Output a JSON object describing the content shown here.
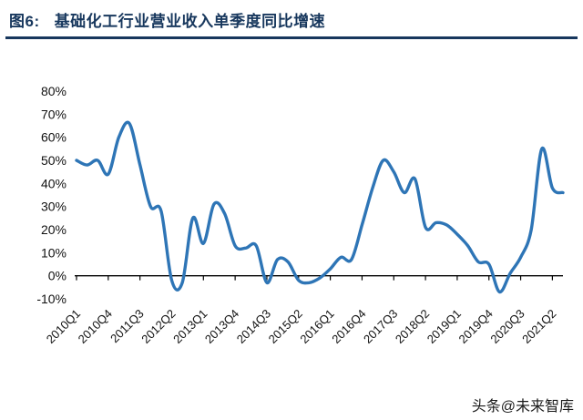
{
  "header": {
    "figure_label": "图6:",
    "title": "基础化工行业营业收入单季度同比增速",
    "accent_color": "#17375D"
  },
  "watermark": {
    "text": "头条@未来智库"
  },
  "chart_data": {
    "type": "line",
    "title": "基础化工行业营业收入单季度同比增速",
    "xlabel": "",
    "ylabel": "",
    "ylim": [
      -10,
      80
    ],
    "y_ticks": [
      80,
      70,
      60,
      50,
      40,
      30,
      20,
      10,
      0,
      -10
    ],
    "y_tick_suffix": "%",
    "grid": false,
    "legend_position": "none",
    "line_color": "#2E75B6",
    "axis_color": "#000000",
    "categories": [
      "2010Q1",
      "2010Q2",
      "2010Q3",
      "2010Q4",
      "2011Q1",
      "2011Q2",
      "2011Q3",
      "2011Q4",
      "2012Q1",
      "2012Q2",
      "2012Q3",
      "2012Q4",
      "2013Q1",
      "2013Q2",
      "2013Q3",
      "2013Q4",
      "2014Q1",
      "2014Q2",
      "2014Q3",
      "2014Q4",
      "2015Q1",
      "2015Q2",
      "2015Q3",
      "2015Q4",
      "2016Q1",
      "2016Q2",
      "2016Q3",
      "2016Q4",
      "2017Q1",
      "2017Q2",
      "2017Q3",
      "2017Q4",
      "2018Q1",
      "2018Q2",
      "2018Q3",
      "2018Q4",
      "2019Q1",
      "2019Q2",
      "2019Q3",
      "2019Q4",
      "2020Q1",
      "2020Q2",
      "2020Q3",
      "2020Q4",
      "2021Q1",
      "2021Q2",
      "2021Q3"
    ],
    "x_tick_labels": [
      "2010Q1",
      "2010Q4",
      "2011Q3",
      "2012Q2",
      "2013Q1",
      "2013Q4",
      "2014Q3",
      "2015Q2",
      "2016Q1",
      "2016Q4",
      "2017Q3",
      "2018Q2",
      "2019Q1",
      "2019Q4",
      "2020Q3",
      "2021Q2"
    ],
    "series": [
      {
        "name": "营业收入单季度同比增速",
        "values": [
          50,
          48,
          50,
          44,
          60,
          66,
          48,
          30,
          28,
          -2,
          -3,
          25,
          14,
          31,
          27,
          13,
          12,
          13,
          -3,
          7,
          6,
          -2,
          -3,
          -1,
          3,
          8,
          7,
          22,
          38,
          50,
          45,
          36,
          42,
          21,
          23,
          22,
          18,
          13,
          6,
          5,
          -7,
          1,
          8,
          20,
          55,
          38,
          36
        ]
      }
    ]
  }
}
